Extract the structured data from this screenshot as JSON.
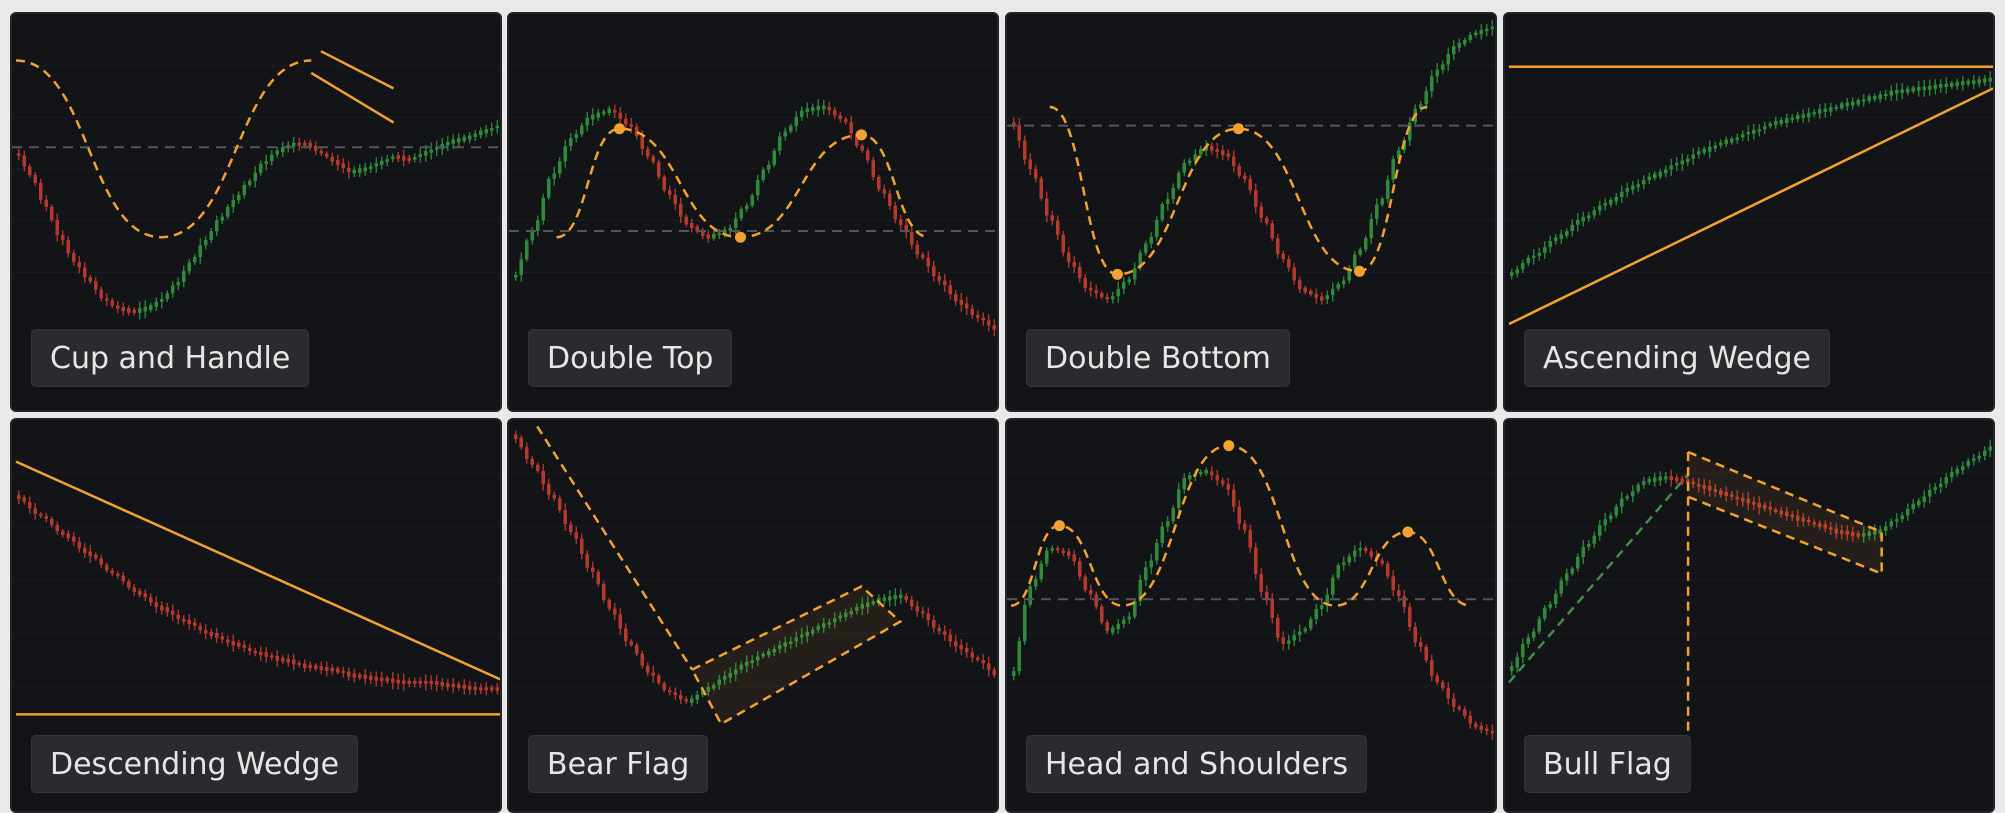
{
  "theme": {
    "background": "#131418",
    "bull_color": "#2e8b3a",
    "bear_color": "#b63a2b",
    "annotation_color": "#f3a230",
    "reference_line_color": "#55565c",
    "label_bg": "#2a2b2f",
    "label_text": "#e6e6e6"
  },
  "cards": [
    {
      "label": "Cup and Handle"
    },
    {
      "label": "Double Top"
    },
    {
      "label": "Double Bottom"
    },
    {
      "label": "Ascending Wedge"
    },
    {
      "label": "Descending Wedge"
    },
    {
      "label": "Bear Flag"
    },
    {
      "label": "Head and Shoulders"
    },
    {
      "label": "Bull Flag"
    }
  ],
  "chart_data": [
    {
      "type": "candlestick",
      "pattern": "cup-and-handle",
      "x": [
        0,
        3,
        6,
        9,
        12,
        15,
        18,
        21,
        24,
        27,
        30,
        33,
        36,
        39,
        42,
        45,
        48,
        51,
        54,
        57,
        60,
        63,
        66,
        69,
        72,
        75,
        78,
        81,
        84,
        87,
        90,
        93,
        96,
        100
      ],
      "y": [
        45,
        52,
        62,
        72,
        80,
        86,
        92,
        95,
        96,
        95,
        92,
        87,
        80,
        73,
        66,
        60,
        54,
        48,
        44,
        42,
        42,
        45,
        48,
        51,
        50,
        48,
        46,
        47,
        45,
        43,
        41,
        40,
        38,
        36
      ],
      "resistance": 43,
      "annotations": [
        "cup curve",
        "handle channel",
        "resistance line"
      ]
    },
    {
      "type": "candlestick",
      "pattern": "double-top",
      "x": [
        0,
        4,
        8,
        12,
        16,
        20,
        24,
        28,
        32,
        36,
        40,
        44,
        48,
        52,
        56,
        60,
        64,
        68,
        72,
        76,
        80,
        84,
        88,
        92,
        96,
        100
      ],
      "y": [
        85,
        70,
        52,
        40,
        33,
        31,
        36,
        46,
        58,
        68,
        72,
        70,
        62,
        50,
        38,
        31,
        30,
        34,
        44,
        57,
        68,
        78,
        86,
        93,
        98,
        102
      ],
      "neckline": 70,
      "peaks": [
        {
          "x": 22,
          "y": 37
        },
        {
          "x": 72,
          "y": 39
        }
      ],
      "trough": {
        "x": 47,
        "y": 72
      },
      "annotations": [
        "peak markers",
        "neckline"
      ]
    },
    {
      "type": "candlestick",
      "pattern": "double-bottom",
      "x": [
        0,
        4,
        8,
        12,
        16,
        20,
        24,
        28,
        32,
        36,
        40,
        44,
        48,
        52,
        56,
        60,
        64,
        68,
        72,
        76,
        80,
        84,
        88,
        92,
        96,
        100
      ],
      "y": [
        35,
        50,
        66,
        80,
        89,
        92,
        86,
        74,
        60,
        48,
        43,
        45,
        53,
        66,
        79,
        89,
        92,
        87,
        76,
        61,
        44,
        30,
        18,
        10,
        6,
        4
      ],
      "neckline": 36,
      "troughs": [
        {
          "x": 22,
          "y": 84
        },
        {
          "x": 72,
          "y": 83
        }
      ],
      "peak": {
        "x": 47,
        "y": 37
      },
      "annotations": [
        "trough markers",
        "neckline"
      ]
    },
    {
      "type": "candlestick",
      "pattern": "ascending-wedge",
      "x": [
        0,
        5,
        10,
        15,
        20,
        25,
        30,
        35,
        40,
        45,
        50,
        55,
        60,
        65,
        70,
        75,
        80,
        85,
        90,
        95,
        100
      ],
      "y": [
        84,
        78,
        72,
        66,
        61,
        56,
        52,
        48,
        44,
        41,
        38,
        35,
        33,
        31,
        29,
        27,
        25,
        24,
        23,
        22,
        21
      ],
      "upper_trendline": [
        [
          0,
          17
        ],
        [
          100,
          17
        ]
      ],
      "lower_trendline": [
        [
          0,
          100
        ],
        [
          100,
          24
        ]
      ]
    },
    {
      "type": "candlestick",
      "pattern": "descending-wedge",
      "x": [
        0,
        5,
        10,
        15,
        20,
        25,
        30,
        35,
        40,
        45,
        50,
        55,
        60,
        65,
        70,
        75,
        80,
        85,
        90,
        95,
        100
      ],
      "y": [
        24,
        30,
        36,
        42,
        48,
        54,
        59,
        63,
        67,
        70,
        73,
        75,
        77,
        78,
        80,
        81,
        82,
        82,
        83,
        84,
        84
      ],
      "upper_trendline": [
        [
          0,
          13
        ],
        [
          100,
          81
        ]
      ],
      "lower_trendline": [
        [
          0,
          92
        ],
        [
          100,
          92
        ]
      ]
    },
    {
      "type": "candlestick",
      "pattern": "bear-flag",
      "x": [
        0,
        4,
        8,
        12,
        16,
        20,
        24,
        28,
        32,
        36,
        40,
        44,
        48,
        52,
        56,
        60,
        64,
        68,
        72,
        76,
        80,
        84,
        88,
        92,
        96,
        100
      ],
      "y": [
        5,
        14,
        24,
        35,
        47,
        59,
        70,
        79,
        85,
        88,
        84,
        80,
        76,
        73,
        70,
        67,
        64,
        61,
        58,
        56,
        55,
        60,
        66,
        71,
        75,
        80
      ],
      "flagpole": [
        [
          5,
          2
        ],
        [
          37,
          78
        ]
      ],
      "channel": [
        [
          37,
          78
        ],
        [
          72,
          52
        ],
        [
          80,
          63
        ],
        [
          43,
          95
        ]
      ]
    },
    {
      "type": "candlestick",
      "pattern": "head-and-shoulders",
      "x": [
        0,
        4,
        8,
        12,
        16,
        20,
        24,
        28,
        32,
        36,
        40,
        44,
        48,
        52,
        56,
        60,
        64,
        68,
        72,
        76,
        80,
        84,
        88,
        92,
        96,
        100
      ],
      "y": [
        80,
        52,
        40,
        42,
        54,
        66,
        62,
        46,
        32,
        18,
        16,
        20,
        34,
        54,
        70,
        66,
        58,
        45,
        40,
        44,
        55,
        70,
        82,
        90,
        96,
        98
      ],
      "neckline": 56,
      "peaks": [
        {
          "x": 10,
          "y": 33
        },
        {
          "x": 45,
          "y": 8
        },
        {
          "x": 82,
          "y": 35
        }
      ]
    },
    {
      "type": "candlestick",
      "pattern": "bull-flag",
      "x": [
        0,
        4,
        8,
        12,
        16,
        20,
        24,
        28,
        32,
        36,
        40,
        44,
        48,
        52,
        56,
        60,
        64,
        68,
        72,
        76,
        80,
        84,
        88,
        92,
        96,
        100
      ],
      "y": [
        78,
        68,
        58,
        48,
        39,
        31,
        24,
        19,
        18,
        19,
        21,
        23,
        25,
        27,
        29,
        31,
        33,
        35,
        36,
        35,
        31,
        26,
        21,
        16,
        12,
        8
      ],
      "flagpole": [
        [
          0,
          82
        ],
        [
          37,
          17
        ]
      ],
      "channel": [
        [
          37,
          10
        ],
        [
          77,
          35
        ],
        [
          77,
          48
        ],
        [
          37,
          24
        ]
      ],
      "target_line": {
        "x": 37,
        "y_from": 24,
        "y_to": 100
      }
    }
  ]
}
